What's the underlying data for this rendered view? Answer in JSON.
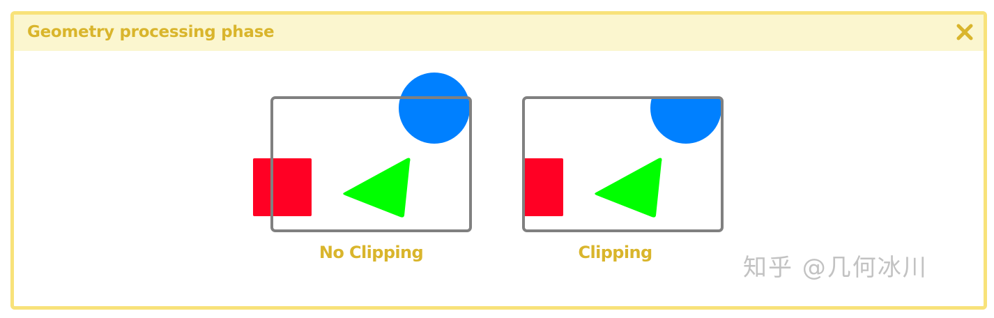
{
  "panel": {
    "title": "Geometry processing phase",
    "close_icon": "close-x-icon"
  },
  "diagram": {
    "left_caption": "No Clipping",
    "right_caption": "Clipping",
    "colors": {
      "frame": "#808080",
      "circle": "#0080ff",
      "square": "#ff0024",
      "triangle": "#00ff00",
      "accent": "#d9b52c",
      "border": "#f8e27a",
      "header_bg": "#fbf6cf"
    }
  },
  "watermark": "知乎 @几何冰川"
}
